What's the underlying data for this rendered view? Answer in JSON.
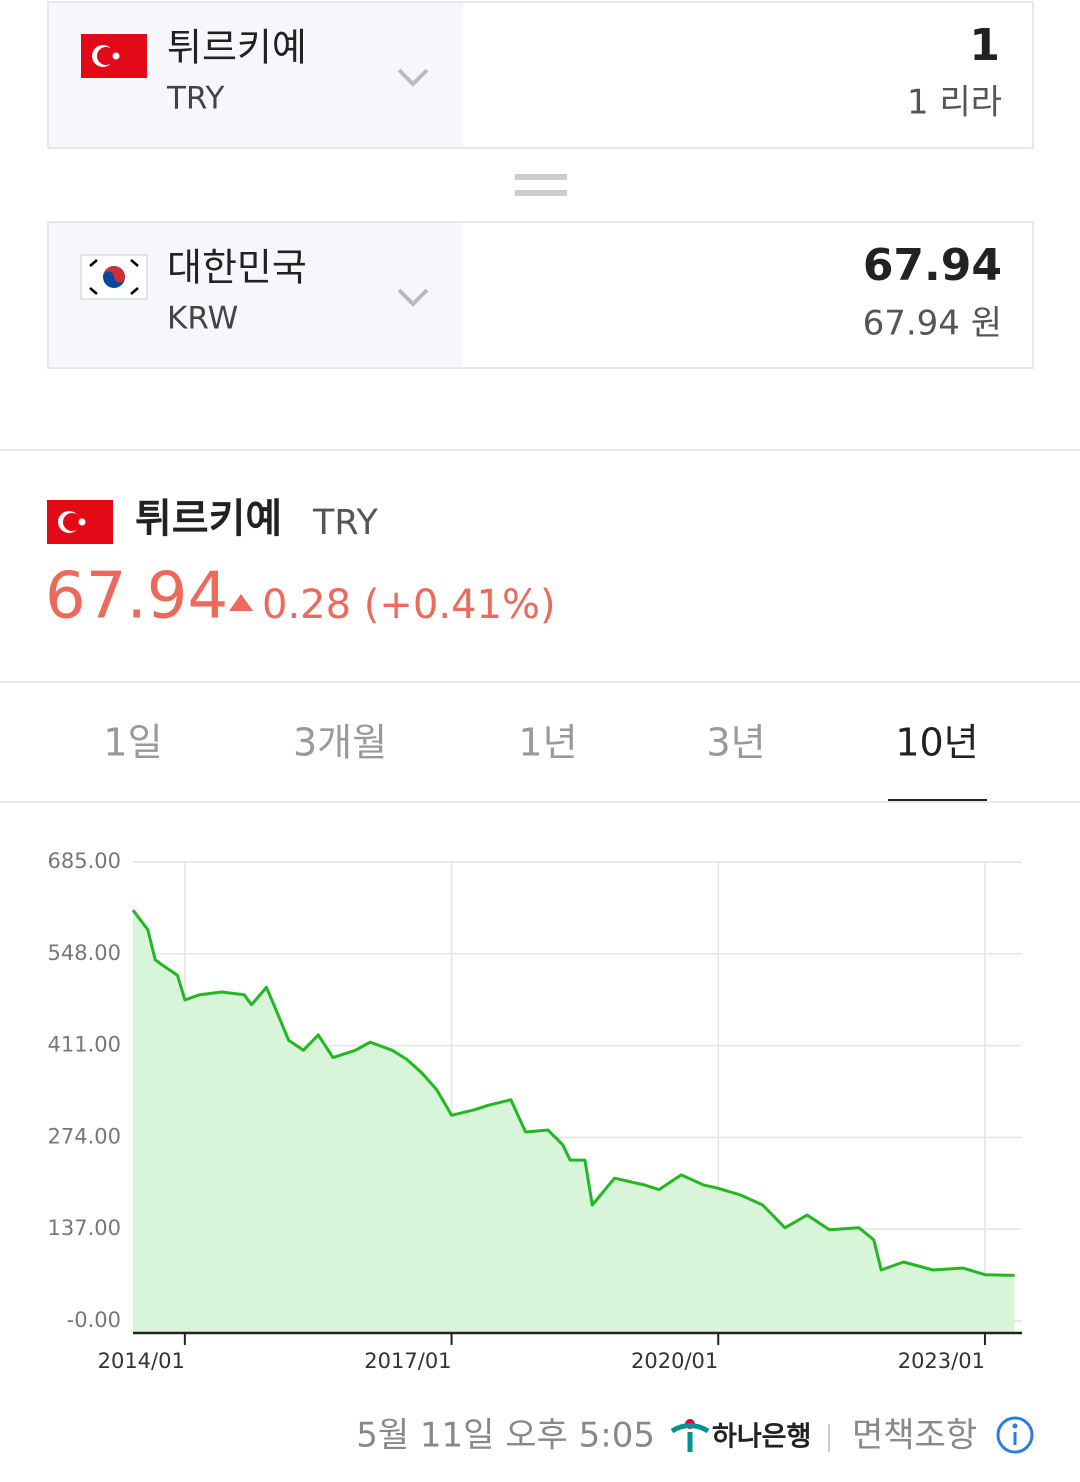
{
  "converter": {
    "from": {
      "name": "튀르키예",
      "code": "TRY",
      "amount": "1",
      "amount_text": "1 리라"
    },
    "to": {
      "name": "대한민국",
      "code": "KRW",
      "amount": "67.94",
      "amount_text": "67.94 원"
    }
  },
  "quote": {
    "name": "튀르키예",
    "code": "TRY",
    "price": "67.94",
    "change": "0.28 (+0.41%)"
  },
  "tabs": [
    {
      "label": "1일",
      "selected": false
    },
    {
      "label": "3개월",
      "selected": false
    },
    {
      "label": "1년",
      "selected": false
    },
    {
      "label": "3년",
      "selected": false
    },
    {
      "label": "10년",
      "selected": true
    }
  ],
  "chart_data": {
    "type": "area",
    "x": [
      "2013/06",
      "2013/08",
      "2013/09",
      "2013/10",
      "2013/12",
      "2014/01",
      "2014/03",
      "2014/06",
      "2014/09",
      "2014/10",
      "2014/12",
      "2015/01",
      "2015/03",
      "2015/05",
      "2015/07",
      "2015/09",
      "2015/12",
      "2016/02",
      "2016/05",
      "2016/07",
      "2016/09",
      "2016/11",
      "2017/01",
      "2017/04",
      "2017/06",
      "2017/09",
      "2017/11",
      "2018/02",
      "2018/04",
      "2018/05",
      "2018/07",
      "2018/08",
      "2018/11",
      "2019/03",
      "2019/05",
      "2019/08",
      "2019/11",
      "2020/01",
      "2020/04",
      "2020/07",
      "2020/10",
      "2021/01",
      "2021/04",
      "2021/08",
      "2021/10",
      "2021/11",
      "2022/02",
      "2022/06",
      "2022/10",
      "2023/01",
      "2023/05"
    ],
    "values": [
      613,
      584,
      539,
      531,
      516,
      479,
      487,
      491,
      487,
      472,
      498,
      472,
      419,
      404,
      427,
      393,
      404,
      416,
      404,
      390,
      370,
      345,
      307,
      315,
      322,
      330,
      282,
      285,
      263,
      240,
      240,
      173,
      213,
      203,
      196,
      218,
      203,
      198,
      188,
      173,
      139,
      158,
      136,
      139,
      121,
      76,
      88,
      76,
      79,
      69,
      67.94
    ],
    "color": "#22b822",
    "fill_color": "#d9f5d9",
    "xlim": [
      "2013/06",
      "2023/06"
    ],
    "xticks": [
      "2014/01",
      "2017/01",
      "2020/01",
      "2023/01"
    ],
    "ylim": [
      -18,
      685
    ],
    "yticks": [
      {
        "value": 685,
        "label": "685.00"
      },
      {
        "value": 548,
        "label": "548.00"
      },
      {
        "value": 411,
        "label": "411.00"
      },
      {
        "value": 274,
        "label": "274.00"
      },
      {
        "value": 137,
        "label": "137.00"
      },
      {
        "value": 0,
        "label": "-0.00"
      }
    ],
    "grid": true
  },
  "footer": {
    "timestamp": "5월 11일 오후 5:05",
    "bank": "하나은행",
    "disclaimer": "면책조항"
  }
}
